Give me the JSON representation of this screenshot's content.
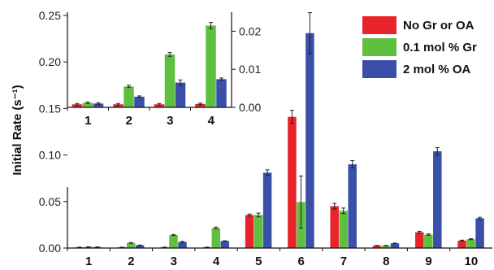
{
  "chart_data": [
    {
      "type": "bar",
      "ylabel": "Initial Rate (s⁻¹)",
      "categories": [
        "1",
        "2",
        "3",
        "4",
        "5",
        "6",
        "7",
        "8",
        "9",
        "10"
      ],
      "ylim": [
        0,
        0.25
      ],
      "yticks": [
        "0.00",
        "0.05",
        "0.10",
        "0.15",
        "0.20",
        "0.25"
      ],
      "series": [
        {
          "name": "No Gr or OA",
          "color": "#e8232a",
          "values": [
            0.0008,
            0.0008,
            0.0008,
            0.0008,
            0.0355,
            0.141,
            0.045,
            0.0025,
            0.017,
            0.008
          ],
          "errors": [
            0.0002,
            0.0002,
            0.0002,
            0.0002,
            0.001,
            0.007,
            0.003,
            0.0003,
            0.001,
            0.0005
          ]
        },
        {
          "name": "0.1 mol % Gr",
          "color": "#5fbf3f",
          "values": [
            0.0012,
            0.0055,
            0.014,
            0.0215,
            0.0355,
            0.0495,
            0.04,
            0.0025,
            0.0145,
            0.0095
          ],
          "errors": [
            0.0002,
            0.0004,
            0.0006,
            0.001,
            0.002,
            0.028,
            0.003,
            0.0003,
            0.0008,
            0.0005
          ]
        },
        {
          "name": "2 mol % OA",
          "color": "#3a4fa8",
          "values": [
            0.001,
            0.003,
            0.0065,
            0.0075,
            0.081,
            0.231,
            0.09,
            0.005,
            0.104,
            0.032
          ],
          "errors": [
            0.0002,
            0.0002,
            0.0006,
            0.0003,
            0.003,
            0.022,
            0.004,
            0.0003,
            0.004,
            0.001
          ]
        }
      ]
    },
    {
      "type": "bar",
      "categories": [
        "1",
        "2",
        "3",
        "4"
      ],
      "ylim": [
        0,
        0.025
      ],
      "yticks": [
        "0.00",
        "0.01",
        "0.02"
      ],
      "left_yticks": [
        "0.15",
        "0.20",
        "0.25"
      ],
      "series": [
        {
          "name": "No Gr or OA",
          "color": "#e8232a",
          "values": [
            0.0008,
            0.0008,
            0.0008,
            0.0009
          ],
          "errors": [
            0.0002,
            0.0002,
            0.0002,
            0.0002
          ]
        },
        {
          "name": "0.1 mol % Gr",
          "color": "#5fbf3f",
          "values": [
            0.0012,
            0.0055,
            0.0139,
            0.0215
          ],
          "errors": [
            0.0002,
            0.0003,
            0.0005,
            0.0008
          ]
        },
        {
          "name": "2 mol % OA",
          "color": "#3a4fa8",
          "values": [
            0.001,
            0.0028,
            0.0065,
            0.0074
          ],
          "errors": [
            0.0002,
            0.0002,
            0.0007,
            0.0003
          ]
        }
      ]
    }
  ],
  "legend": {
    "items": [
      {
        "label": "No Gr or OA",
        "color": "#e8232a"
      },
      {
        "label": "0.1 mol % Gr",
        "color": "#5fbf3f"
      },
      {
        "label": "2 mol % OA",
        "color": "#3a4fa8"
      }
    ]
  }
}
